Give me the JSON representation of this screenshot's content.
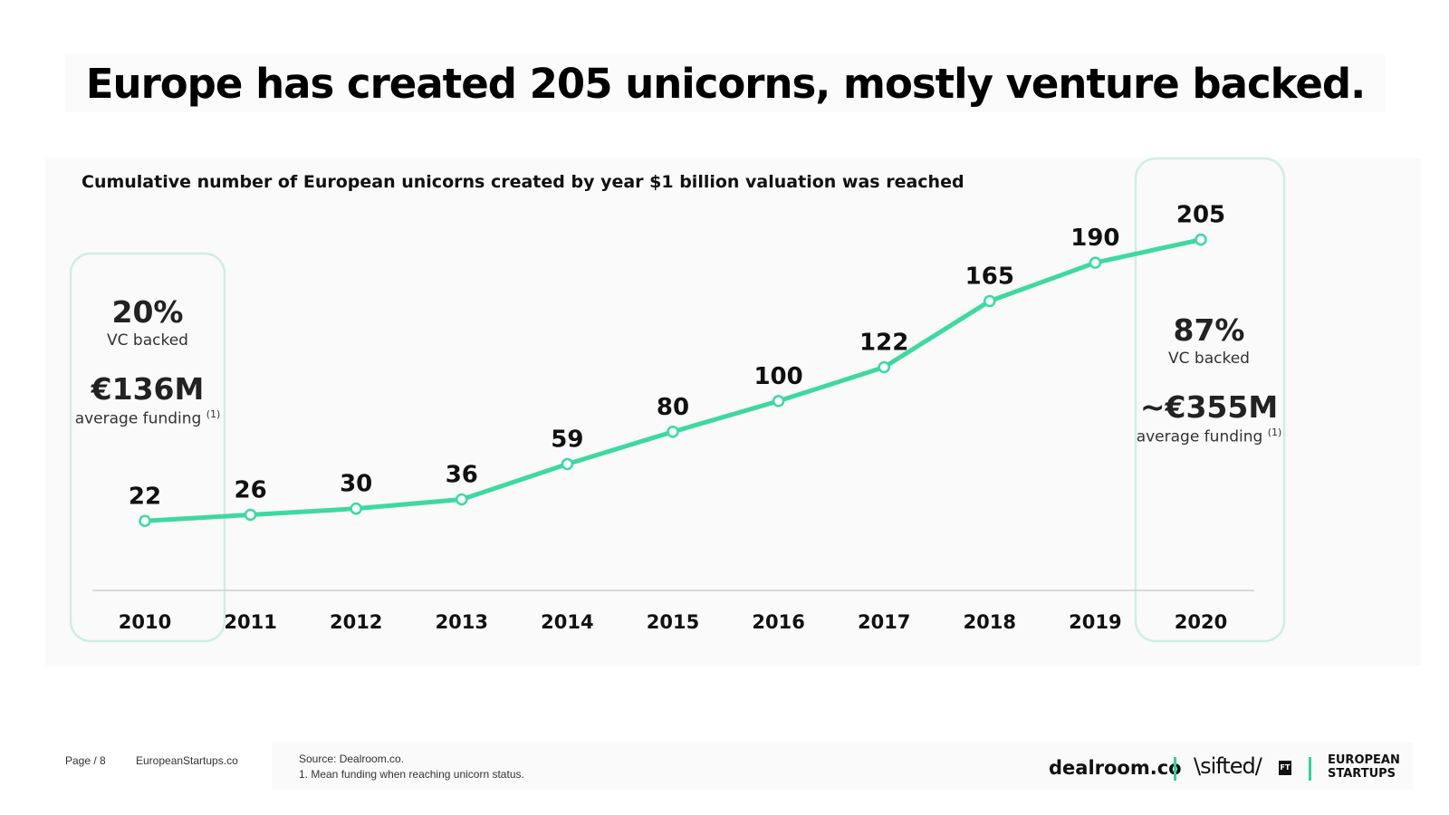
{
  "title": "Europe has created 205 unicorns, mostly venture backed.",
  "chart_data": {
    "type": "line",
    "title": "Cumulative number of European unicorns created by year $1 billion valuation was reached",
    "categories": [
      "2010",
      "2011",
      "2012",
      "2013",
      "2014",
      "2015",
      "2016",
      "2017",
      "2018",
      "2019",
      "2020"
    ],
    "values": [
      22,
      26,
      30,
      36,
      59,
      80,
      100,
      122,
      165,
      190,
      205
    ],
    "data_labels": [
      "22",
      "26",
      "30",
      "36",
      "59",
      "80",
      "100",
      "122",
      "165",
      "190",
      "205"
    ],
    "line_color": "#3dd9a0",
    "grid": false,
    "legend": "none"
  },
  "callouts": {
    "left": {
      "vc_pct": "20%",
      "vc_label": "VC backed",
      "funding": "€136M",
      "funding_label": "average funding",
      "footnote_mark": "(1)"
    },
    "right": {
      "vc_pct": "87%",
      "vc_label": "VC backed",
      "funding": "~€355M",
      "funding_label": "average funding",
      "footnote_mark": "(1)"
    }
  },
  "footer": {
    "page": "Page / 8",
    "site": "EuropeanStartups.co",
    "source": "Source: Dealroom.co.",
    "note": "1.  Mean funding when reaching unicorn status."
  },
  "logos": {
    "dealroom": "dealroom.co",
    "sifted": "\\sifted/",
    "ft": "FT",
    "european_startups_1": "EUROPEAN",
    "european_startups_2": "STARTUPS"
  },
  "colors": {
    "accent": "#3dd9a0",
    "highlight_border": "#cfeee2"
  }
}
